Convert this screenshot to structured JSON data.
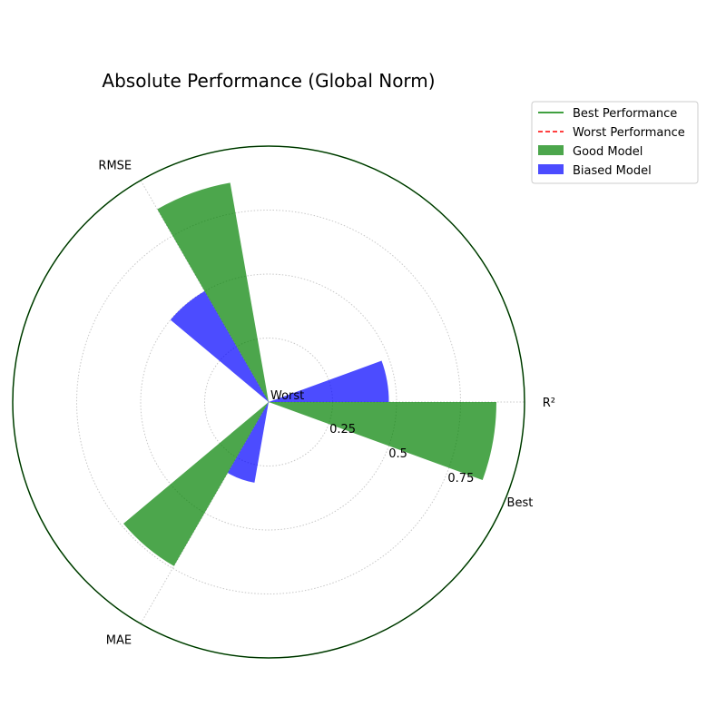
{
  "chart_data": {
    "type": "polar-bar",
    "title": "Absolute Performance (Global Norm)",
    "categories": [
      "R²",
      "RMSE",
      "MAE"
    ],
    "series": [
      {
        "name": "Good Model",
        "color": "#008000",
        "values": [
          0.89,
          0.87,
          0.74
        ]
      },
      {
        "name": "Biased Model",
        "color": "#0000ff",
        "values": [
          0.47,
          0.5,
          0.32
        ]
      }
    ],
    "reference_lines": [
      {
        "name": "Best Performance",
        "value": 1.0,
        "color": "#008000",
        "style": "solid"
      },
      {
        "name": "Worst Performance",
        "value": 0.0,
        "color": "#ff0000",
        "style": "dashed"
      }
    ],
    "radial_ticks": [
      {
        "value": 0.0,
        "label": "Worst"
      },
      {
        "value": 0.25,
        "label": "0.25"
      },
      {
        "value": 0.5,
        "label": "0.5"
      },
      {
        "value": 0.75,
        "label": "0.75"
      },
      {
        "value": 1.0,
        "label": "Best"
      }
    ],
    "rlim": [
      0,
      1
    ],
    "grid": true,
    "legend_position": "upper-right-outside"
  }
}
